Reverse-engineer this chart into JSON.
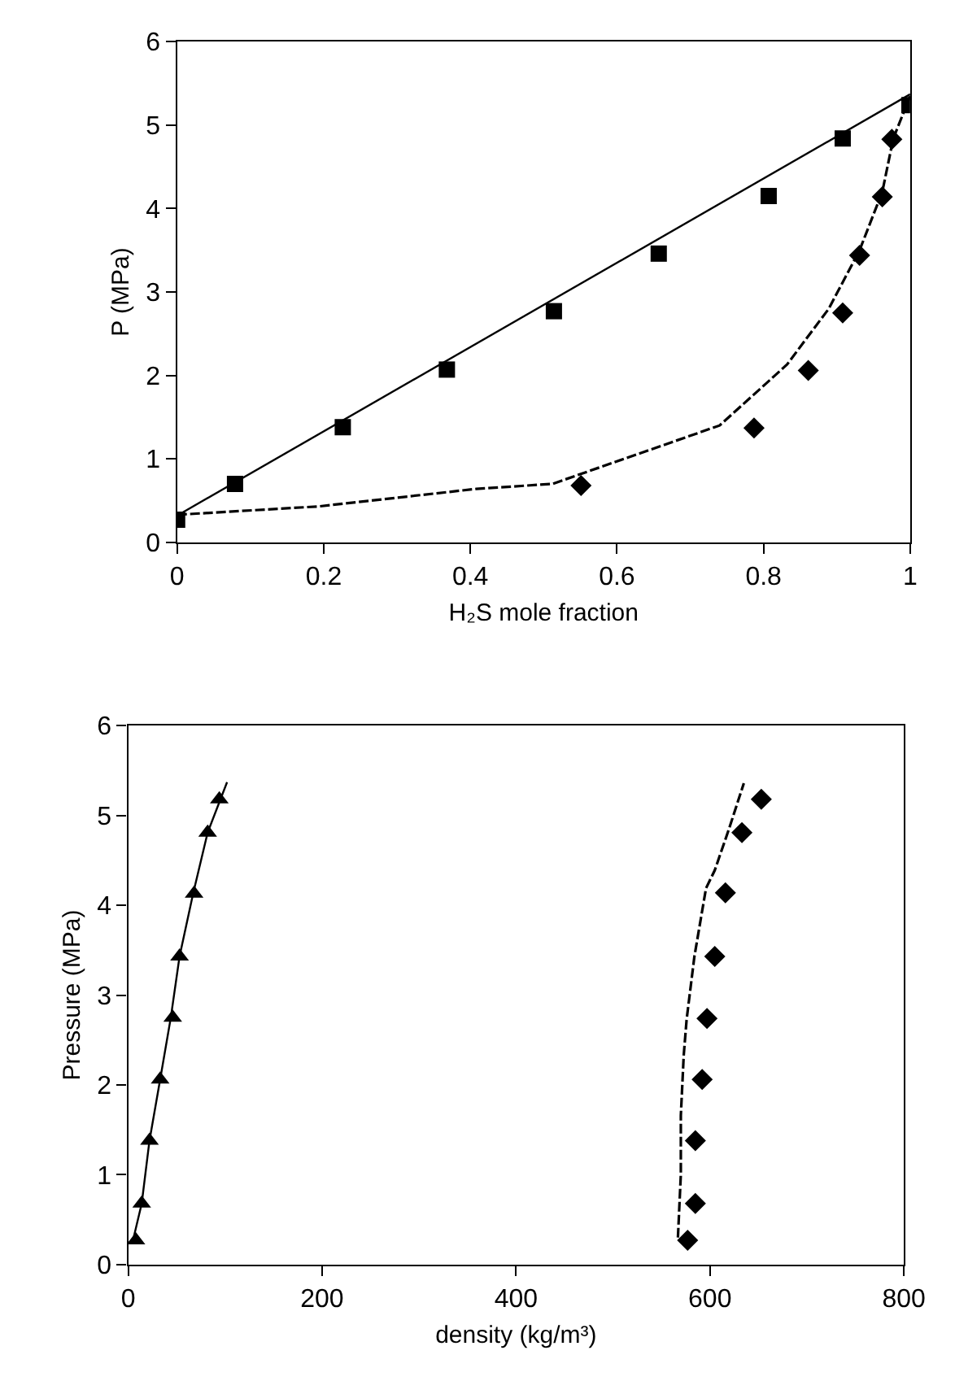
{
  "chart_data": [
    {
      "type": "scatter",
      "xlabel": "H₂S mole fraction",
      "ylabel": "P (MPa)",
      "xlim": [
        0,
        1
      ],
      "xticks": [
        0,
        0.2,
        0.4,
        0.6,
        0.8,
        1
      ],
      "ylim": [
        0,
        6
      ],
      "yticks": [
        0,
        1,
        2,
        3,
        4,
        5,
        6
      ],
      "series": [
        {
          "marker": "square",
          "color": "#000000",
          "x": [
            0,
            0.079,
            0.226,
            0.368,
            0.514,
            0.657,
            0.807,
            0.908,
            0.999
          ],
          "values": [
            0.27,
            0.7,
            1.38,
            2.07,
            2.77,
            3.46,
            4.15,
            4.84,
            5.24
          ]
        },
        {
          "marker": "diamond",
          "color": "#000000",
          "x": [
            0.551,
            0.787,
            0.861,
            0.908,
            0.931,
            0.962,
            0.975
          ],
          "values": [
            0.68,
            1.37,
            2.06,
            2.75,
            3.44,
            4.14,
            4.83
          ]
        },
        {
          "type": "line",
          "line_style": "solid",
          "color": "#000000",
          "x": [
            0,
            1
          ],
          "values": [
            0.32,
            5.37
          ]
        },
        {
          "type": "line",
          "line_style": "dashed",
          "color": "#000000",
          "x": [
            0,
            0.193,
            0.408,
            0.512,
            0.74,
            0.832,
            0.889,
            0.931,
            0.962,
            0.977,
            1.0
          ],
          "values": [
            0.33,
            0.43,
            0.64,
            0.7,
            1.4,
            2.13,
            2.8,
            3.5,
            4.2,
            4.84,
            5.35
          ]
        }
      ]
    },
    {
      "type": "scatter",
      "xlabel": "density (kg/m³)",
      "ylabel": "Pressure (MPa)",
      "xlim": [
        0,
        800
      ],
      "xticks": [
        0,
        200,
        400,
        600,
        800
      ],
      "ylim": [
        0,
        6
      ],
      "yticks": [
        0,
        1,
        2,
        3,
        4,
        5,
        6
      ],
      "series": [
        {
          "marker": "triangle",
          "color": "#000000",
          "x": [
            8,
            14,
            22,
            33,
            46,
            53,
            68,
            82,
            94
          ],
          "values": [
            0.27,
            0.68,
            1.38,
            2.06,
            2.75,
            3.43,
            4.13,
            4.81,
            5.18
          ]
        },
        {
          "marker": "diamond",
          "color": "#000000",
          "x": [
            577,
            585,
            585,
            592,
            597,
            605,
            616,
            633,
            653
          ],
          "values": [
            0.27,
            0.68,
            1.38,
            2.06,
            2.74,
            3.43,
            4.14,
            4.81,
            5.18
          ]
        },
        {
          "type": "line",
          "line_style": "solid",
          "color": "#000000",
          "x": [
            5,
            14,
            22,
            33,
            44,
            53,
            67,
            82,
            102
          ],
          "values": [
            0.27,
            0.68,
            1.38,
            2.06,
            2.75,
            3.43,
            4.13,
            4.81,
            5.37
          ]
        },
        {
          "type": "line",
          "line_style": "dashed",
          "color": "#000000",
          "x": [
            567,
            570,
            570,
            573,
            576,
            584,
            596,
            605,
            620,
            635
          ],
          "values": [
            0.3,
            1.0,
            1.66,
            2.33,
            2.73,
            3.43,
            4.19,
            4.39,
            4.86,
            5.36
          ]
        }
      ]
    }
  ]
}
